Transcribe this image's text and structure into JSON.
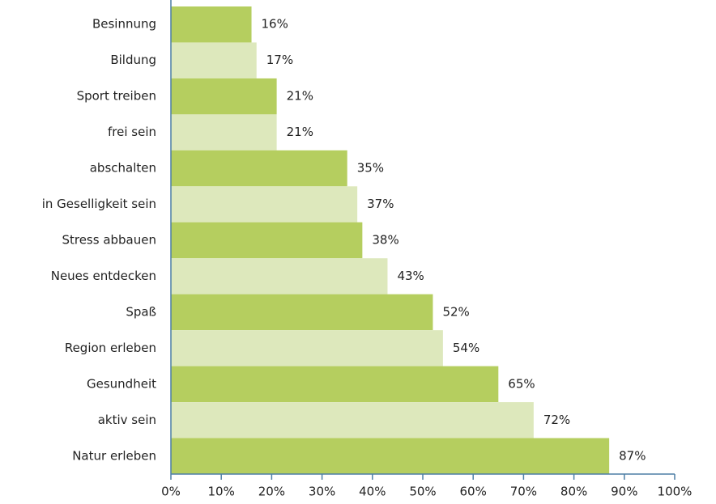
{
  "chart_data": {
    "type": "hbar",
    "categories": [
      "Besinnung",
      "Bildung",
      "Sport treiben",
      "frei sein",
      "abschalten",
      "in Geselligkeit sein",
      "Stress abbauen",
      "Neues entdecken",
      "Spaß",
      "Region erleben",
      "Gesundheit",
      "aktiv sein",
      "Natur erleben"
    ],
    "values": [
      16,
      17,
      21,
      21,
      35,
      37,
      38,
      43,
      52,
      54,
      65,
      72,
      87
    ],
    "value_labels": [
      "16%",
      "17%",
      "21%",
      "21%",
      "35%",
      "37%",
      "38%",
      "43%",
      "52%",
      "54%",
      "65%",
      "72%",
      "87%"
    ],
    "colors": [
      "#b5ce5f",
      "#dde8bc"
    ],
    "xlim": [
      0,
      100
    ],
    "xticks": [
      {
        "value": 0,
        "label": "0%"
      },
      {
        "value": 10,
        "label": "10%"
      },
      {
        "value": 20,
        "label": "20%"
      },
      {
        "value": 30,
        "label": "30%"
      },
      {
        "value": 40,
        "label": "40%"
      },
      {
        "value": 50,
        "label": "50%"
      },
      {
        "value": 60,
        "label": "60%"
      },
      {
        "value": 70,
        "label": "70%"
      },
      {
        "value": 80,
        "label": "80%"
      },
      {
        "value": 90,
        "label": "90%"
      },
      {
        "value": 100,
        "label": "100%"
      }
    ]
  }
}
